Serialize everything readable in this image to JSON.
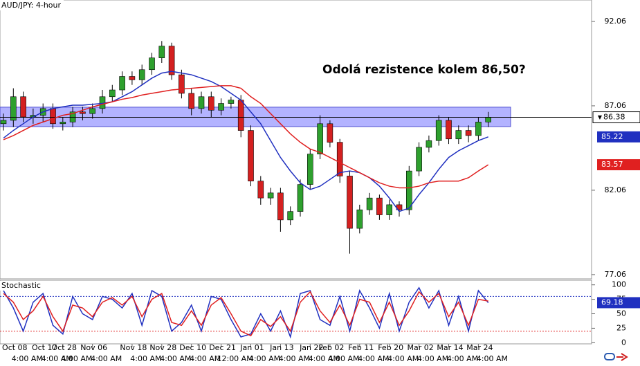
{
  "chart_data": [
    {
      "type": "candlestick",
      "title": "AUD/JPY: 4-hour",
      "annotation": "Odolá rezistence kolem 86,50?",
      "categories": [
        null,
        "Oct 08",
        null,
        null,
        "Oct 17",
        null,
        "Oct 28",
        null,
        null,
        "Nov 06",
        null,
        null,
        null,
        "Nov 18",
        null,
        null,
        "Nov 28",
        null,
        null,
        "Dec 10",
        null,
        null,
        "Dec 21",
        null,
        null,
        "Jan 01",
        null,
        null,
        "Jan 13",
        null,
        null,
        "Jan 22",
        null,
        "Feb 02",
        null,
        null,
        "Feb 11",
        null,
        null,
        "Feb 20",
        null,
        null,
        "Mar 02",
        null,
        null,
        "Mar 14",
        null,
        null,
        "Mar 24",
        null
      ],
      "time_labels": [
        null,
        "4:00 AM",
        null,
        null,
        "4:00 AM",
        null,
        "4:00 AM",
        null,
        null,
        "4:00 AM",
        null,
        null,
        null,
        "4:00 AM",
        null,
        null,
        "4:00 AM",
        null,
        null,
        "4:00 AM",
        null,
        null,
        "12:00 AM",
        null,
        null,
        "4:00 AM",
        null,
        null,
        "4:00 AM",
        null,
        null,
        "4:00 AM",
        null,
        "4:00 AM",
        null,
        null,
        "4:00 AM",
        null,
        null,
        "4:00 AM",
        null,
        null,
        "4:00 AM",
        null,
        null,
        "4:00 AM",
        null,
        null,
        "4:00 AM",
        null
      ],
      "open": [
        86.0,
        86.2,
        87.6,
        86.4,
        86.5,
        86.9,
        86.0,
        86.1,
        86.7,
        86.6,
        86.9,
        87.6,
        88.0,
        88.8,
        88.6,
        89.2,
        89.9,
        90.6,
        88.9,
        87.8,
        86.9,
        87.6,
        86.8,
        87.2,
        87.4,
        85.6,
        82.6,
        81.6,
        81.9,
        80.3,
        80.8,
        82.4,
        84.2,
        86.0,
        84.9,
        82.9,
        79.8,
        80.9,
        81.6,
        80.6,
        81.2,
        80.9,
        83.2,
        84.6,
        85.0,
        86.2,
        85.1,
        85.6,
        85.3,
        86.1
      ],
      "high": [
        86.6,
        88.1,
        87.9,
        86.9,
        87.2,
        87.2,
        86.4,
        87.0,
        87.0,
        87.2,
        88.0,
        88.3,
        89.1,
        89.1,
        89.5,
        90.2,
        90.9,
        90.8,
        89.2,
        88.1,
        87.9,
        87.9,
        87.5,
        87.6,
        87.7,
        85.9,
        82.9,
        82.2,
        82.2,
        81.1,
        82.7,
        84.5,
        86.5,
        86.2,
        85.1,
        83.2,
        81.2,
        81.9,
        81.8,
        81.5,
        81.4,
        83.5,
        84.9,
        85.3,
        86.5,
        86.4,
        85.9,
        85.9,
        86.4,
        86.7
      ],
      "low": [
        85.6,
        85.8,
        86.1,
        86.0,
        86.1,
        85.7,
        85.6,
        85.8,
        86.2,
        86.3,
        86.6,
        87.3,
        87.7,
        88.3,
        88.3,
        88.9,
        89.6,
        88.6,
        87.5,
        86.5,
        86.6,
        86.4,
        86.5,
        86.9,
        85.2,
        82.3,
        81.2,
        81.2,
        79.6,
        80.0,
        80.5,
        82.1,
        83.9,
        84.6,
        82.5,
        78.3,
        79.5,
        80.6,
        80.3,
        80.3,
        80.5,
        80.6,
        82.9,
        84.3,
        84.7,
        84.8,
        84.8,
        84.9,
        85.0,
        85.8
      ],
      "close": [
        86.2,
        87.6,
        86.4,
        86.5,
        86.9,
        86.0,
        86.1,
        86.7,
        86.6,
        86.9,
        87.6,
        88.0,
        88.8,
        88.6,
        89.2,
        89.9,
        90.6,
        88.9,
        87.8,
        86.9,
        87.6,
        86.8,
        87.2,
        87.4,
        85.6,
        82.6,
        81.6,
        81.9,
        80.3,
        80.8,
        82.4,
        84.2,
        86.0,
        84.9,
        82.9,
        79.8,
        80.9,
        81.6,
        80.6,
        81.2,
        80.9,
        83.2,
        84.6,
        85.0,
        86.2,
        85.1,
        85.6,
        85.3,
        86.1,
        86.38
      ],
      "up_color": "#2ea02e",
      "down_color": "#d42020",
      "series": [
        {
          "color": "#2030c0",
          "values": [
            85.15,
            85.6,
            86.0,
            86.4,
            86.7,
            86.9,
            87.0,
            87.1,
            87.1,
            87.15,
            87.2,
            87.3,
            87.6,
            87.9,
            88.3,
            88.7,
            89.0,
            89.1,
            89.0,
            88.9,
            88.7,
            88.5,
            88.2,
            87.8,
            87.4,
            86.7,
            86.0,
            85.0,
            84.0,
            83.2,
            82.5,
            82.1,
            82.3,
            82.7,
            83.1,
            83.2,
            83.1,
            82.8,
            82.3,
            81.6,
            80.8,
            81.0,
            81.8,
            82.5,
            83.3,
            84.0,
            84.4,
            84.7,
            85.0,
            85.22
          ]
        },
        {
          "color": "#e02020",
          "values": [
            85.05,
            85.3,
            85.6,
            85.9,
            86.1,
            86.3,
            86.5,
            86.6,
            86.8,
            87.0,
            87.15,
            87.3,
            87.45,
            87.55,
            87.7,
            87.8,
            87.9,
            88.0,
            88.05,
            88.1,
            88.15,
            88.2,
            88.25,
            88.25,
            88.1,
            87.6,
            87.2,
            86.6,
            86.0,
            85.4,
            84.9,
            84.5,
            84.3,
            84.0,
            83.7,
            83.4,
            83.1,
            82.8,
            82.5,
            82.3,
            82.2,
            82.2,
            82.3,
            82.5,
            82.6,
            82.6,
            82.6,
            82.8,
            83.2,
            83.57
          ]
        }
      ],
      "zone": [
        85.83,
        86.98
      ],
      "zone_color": "#8080ff",
      "ylim": [
        76.81,
        93.33
      ],
      "yticks": [
        77.06,
        82.06,
        87.06,
        92.06
      ]
    },
    {
      "type": "line",
      "title": "Stochastic",
      "series": [
        {
          "color": "#2030c0",
          "values": [
            90,
            60,
            20,
            70,
            85,
            30,
            15,
            80,
            50,
            40,
            80,
            75,
            60,
            85,
            30,
            90,
            80,
            20,
            35,
            65,
            20,
            80,
            75,
            40,
            10,
            15,
            50,
            20,
            55,
            10,
            85,
            90,
            40,
            30,
            80,
            20,
            90,
            60,
            25,
            85,
            20,
            70,
            95,
            60,
            90,
            30,
            80,
            20,
            90,
            69.18
          ]
        },
        {
          "color": "#e02020",
          "values": [
            85,
            70,
            40,
            55,
            80,
            45,
            20,
            65,
            60,
            45,
            70,
            78,
            65,
            80,
            45,
            75,
            85,
            35,
            30,
            55,
            30,
            65,
            78,
            50,
            20,
            12,
            40,
            28,
            45,
            20,
            70,
            88,
            55,
            35,
            65,
            30,
            75,
            70,
            35,
            70,
            30,
            55,
            88,
            70,
            85,
            45,
            70,
            30,
            75,
            72
          ]
        }
      ],
      "levels": [
        {
          "value": 80,
          "color": "#2030c0"
        },
        {
          "value": 20,
          "color": "#e02020"
        }
      ],
      "ylim": [
        -2,
        108
      ],
      "yticks": [
        0,
        25,
        50,
        75,
        100
      ]
    }
  ]
}
